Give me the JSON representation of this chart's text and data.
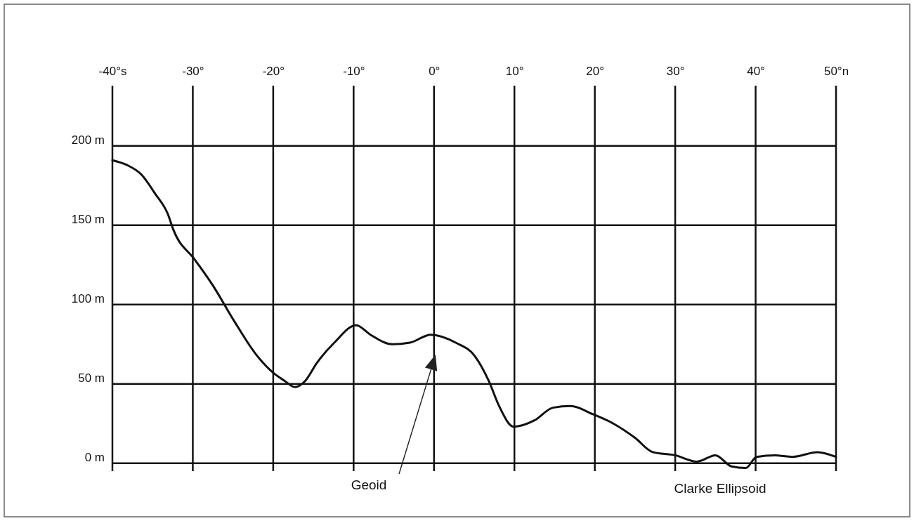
{
  "chart_data": {
    "type": "line",
    "xlim": [
      -40,
      50
    ],
    "ylim": [
      -5,
      238
    ],
    "xticks": [
      {
        "value": -40,
        "label": "-40°s"
      },
      {
        "value": -30,
        "label": "-30°"
      },
      {
        "value": -20,
        "label": "-20°"
      },
      {
        "value": -10,
        "label": "-10°"
      },
      {
        "value": 0,
        "label": "0°"
      },
      {
        "value": 10,
        "label": "10°"
      },
      {
        "value": 20,
        "label": "20°"
      },
      {
        "value": 30,
        "label": "30°"
      },
      {
        "value": 40,
        "label": "40°"
      },
      {
        "value": 50,
        "label": "50°n"
      }
    ],
    "yticks": [
      {
        "value": 0,
        "label": "0 m"
      },
      {
        "value": 50,
        "label": "50 m"
      },
      {
        "value": 100,
        "label": "100 m"
      },
      {
        "value": 150,
        "label": "150 m"
      },
      {
        "value": 200,
        "label": "200 m"
      }
    ],
    "grid": true,
    "marker": "none",
    "line_style": "solid",
    "series": [
      {
        "color": "#111111",
        "x": [
          -40,
          -38.2,
          -36.4,
          -34.7,
          -33.1,
          -32.4,
          -29.7,
          -27.5,
          -24.9,
          -22.2,
          -20,
          -18.6,
          -17.3,
          -16,
          -14.6,
          -12.4,
          -9.7,
          -7.9,
          -5.2,
          -3,
          -0.4,
          2.7,
          5,
          6.8,
          8.1,
          9.9,
          12.5,
          14.8,
          17,
          19.7,
          22.3,
          25,
          27.2,
          30,
          32.7,
          35,
          37,
          38.8,
          40.1,
          42.4,
          44.6,
          47.7,
          50
        ],
        "values": [
          191,
          188,
          182,
          170,
          157,
          147,
          128,
          112,
          90,
          69,
          57,
          52,
          48,
          52,
          63,
          76,
          87,
          81,
          75,
          76,
          81,
          76,
          68,
          52,
          36,
          23,
          27,
          35,
          36,
          31,
          25,
          16,
          7,
          5,
          1,
          5,
          -2,
          -3,
          4,
          5,
          4,
          7,
          4
        ]
      }
    ],
    "annotations": [
      "Geoid",
      "Clarke Ellipsoid"
    ]
  }
}
